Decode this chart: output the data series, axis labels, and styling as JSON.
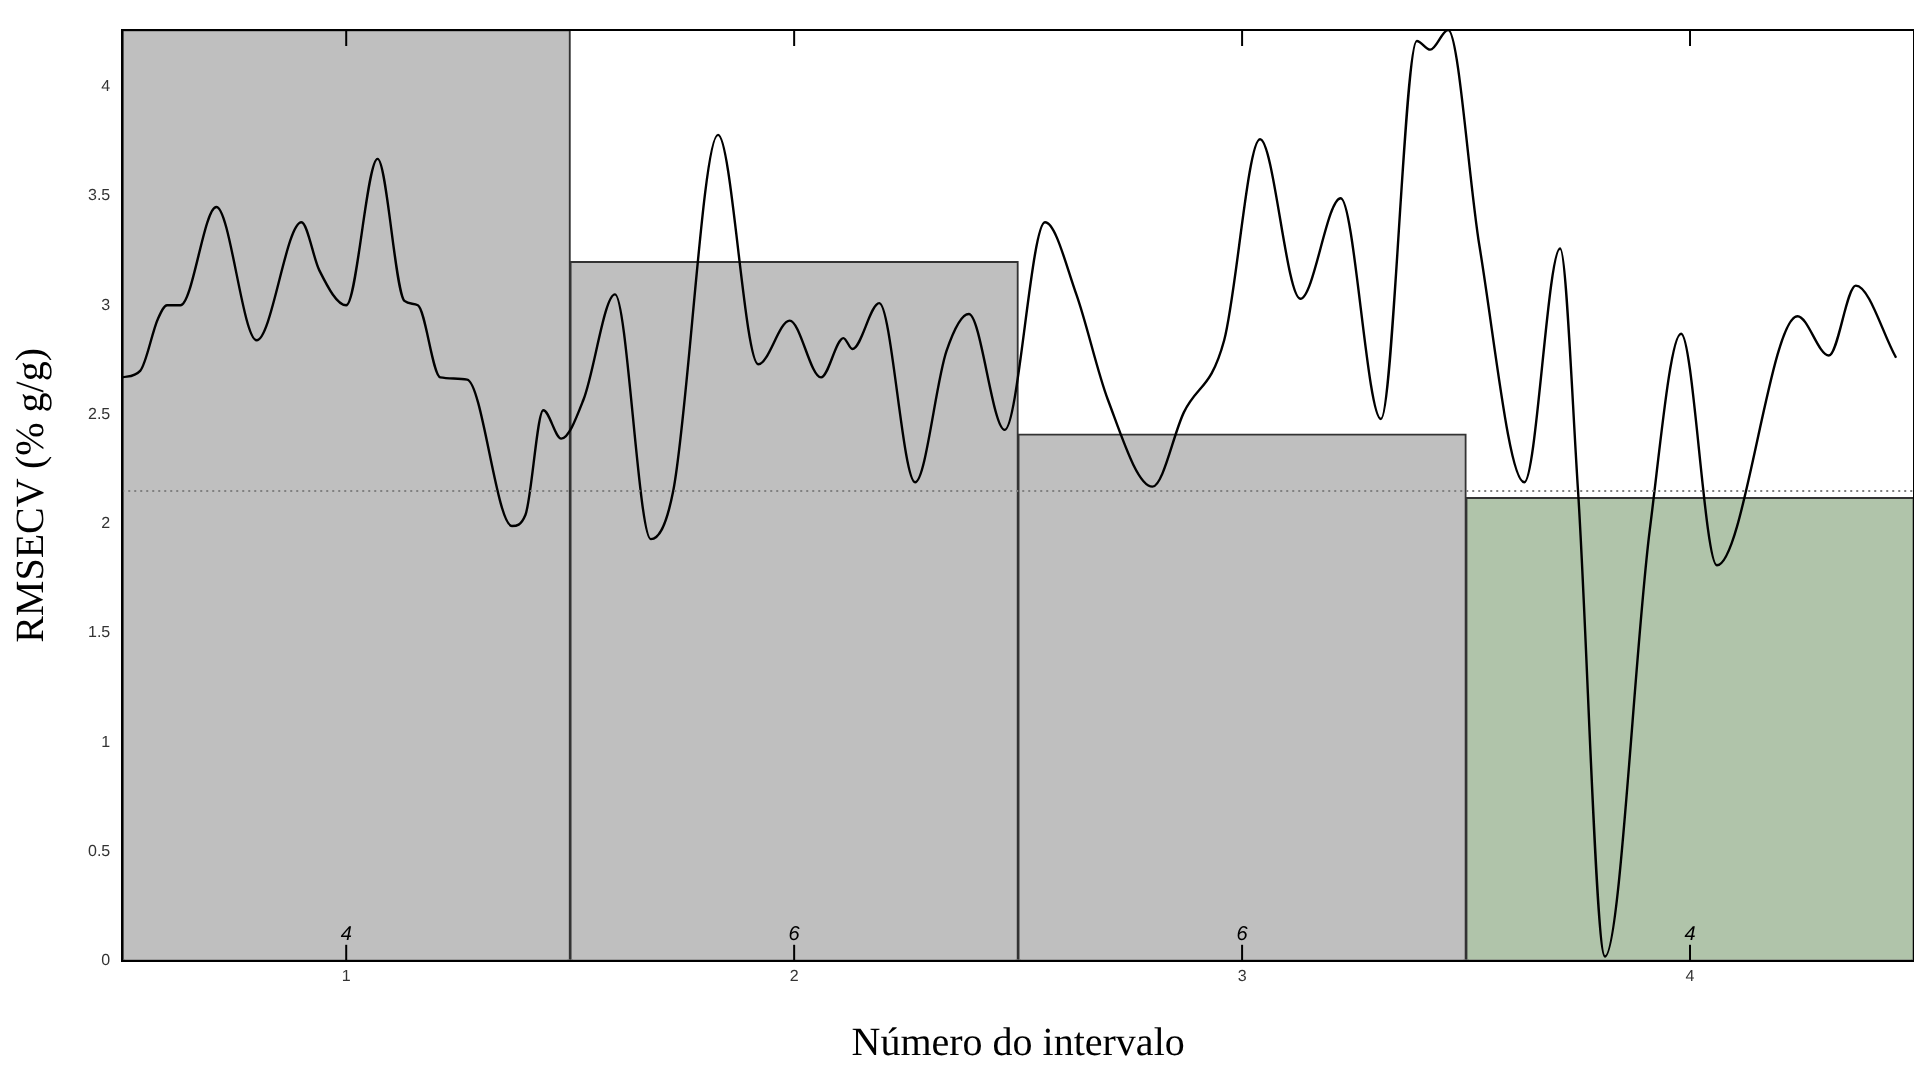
{
  "chart_data": {
    "type": "bar",
    "xlabel": "Número do intervalo",
    "ylabel": "RMSECV (% g/g)",
    "x": [
      1,
      2,
      3,
      4
    ],
    "xlim": [
      0.5,
      4.5
    ],
    "xticks": [
      1,
      2,
      3,
      4
    ],
    "ylim": [
      0,
      4.26
    ],
    "yticks": [
      0,
      0.5,
      1,
      1.5,
      2,
      2.5,
      3,
      3.5,
      4
    ],
    "grid": false,
    "legend": false,
    "marker": "none",
    "series": [
      {
        "colors": [
          "#bfbfbf",
          "#bfbfbf",
          "#bfbfbf",
          "#b0c4aa"
        ],
        "values": [
          4.26,
          3.2,
          2.41,
          2.12
        ]
      },
      {
        "type": "line",
        "color": "#000000",
        "x": [
          0.5,
          0.54,
          0.58,
          0.6,
          0.63,
          0.71,
          0.8,
          0.9,
          0.94,
          1.0,
          1.07,
          1.13,
          1.16,
          1.21,
          1.27,
          1.37,
          1.4,
          1.44,
          1.48,
          1.53,
          1.6,
          1.68,
          1.73,
          1.83,
          1.92,
          1.99,
          2.06,
          2.11,
          2.13,
          2.19,
          2.27,
          2.34,
          2.39,
          2.47,
          2.56,
          2.63,
          2.7,
          2.8,
          2.87,
          2.96,
          3.04,
          3.13,
          3.22,
          3.31,
          3.39,
          3.42,
          3.46,
          3.53,
          3.63,
          3.71,
          3.75,
          3.81,
          3.91,
          3.98,
          4.06,
          4.24,
          4.31,
          4.37,
          4.46
        ],
        "values": [
          2.67,
          2.7,
          2.94,
          3.0,
          3.0,
          3.45,
          2.84,
          3.38,
          3.16,
          3.0,
          3.67,
          3.02,
          3.0,
          2.67,
          2.66,
          1.99,
          2.04,
          2.52,
          2.39,
          2.57,
          3.05,
          1.93,
          2.15,
          3.78,
          2.73,
          2.93,
          2.67,
          2.85,
          2.8,
          3.01,
          2.19,
          2.79,
          2.96,
          2.43,
          3.38,
          3.05,
          2.57,
          2.17,
          2.51,
          2.84,
          3.76,
          3.03,
          3.49,
          2.48,
          4.21,
          4.17,
          4.26,
          3.27,
          2.19,
          3.26,
          2.15,
          0.02,
          1.97,
          2.87,
          1.81,
          2.95,
          2.77,
          3.09,
          2.76
        ]
      }
    ],
    "ref_lines": [
      {
        "axis": "y",
        "value": 2.15,
        "line_style": "dotted",
        "color": "#808080"
      }
    ],
    "annotations": [
      "4",
      "6",
      "6",
      "4"
    ]
  }
}
